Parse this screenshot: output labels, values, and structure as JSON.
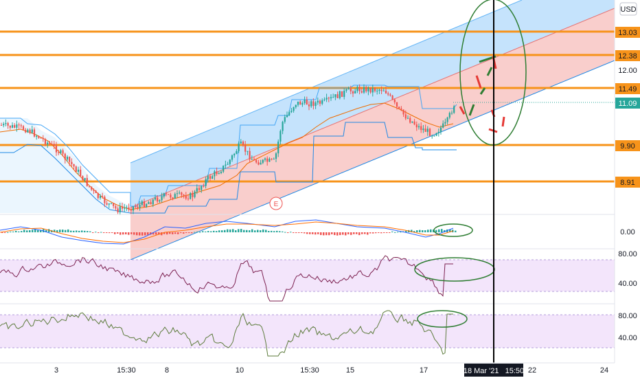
{
  "currency": "USD",
  "price_tags": [
    {
      "label": "13.03",
      "color": "#f7931a",
      "text_color": "#131722"
    },
    {
      "label": "12.38",
      "color": "#f7931a",
      "text_color": "#131722"
    },
    {
      "label": "11.49",
      "color": "#f7931a",
      "text_color": "#131722"
    },
    {
      "label": "11.09",
      "color": "#26a69a",
      "text_color": "#ffffff"
    },
    {
      "label": "9.90",
      "color": "#f7931a",
      "text_color": "#131722"
    },
    {
      "label": "8.91",
      "color": "#f7931a",
      "text_color": "#131722"
    }
  ],
  "price_scale_labels": [
    "12.00"
  ],
  "macd_scale_labels": [
    "0.00"
  ],
  "rsi_scale_labels": [
    "80.00",
    "40.00"
  ],
  "stoch_scale_labels": [
    "80.00",
    "40.00"
  ],
  "time_labels": [
    "3",
    "15:30",
    "8",
    "10",
    "15:30",
    "15",
    "17",
    "22",
    "24"
  ],
  "crosshair_time_label": "18 Mar '21   15:50",
  "earnings_marker": "E",
  "colors": {
    "accent_orange": "#f7931a",
    "channel_upper": "#bbdefb",
    "channel_lower": "#f8c5c3",
    "up_candle": "#26a69a",
    "down_candle": "#ef5350",
    "annotation_green": "#2e7d32",
    "rsi_line": "#7b1f4f",
    "stoch_line": "#5b7a3a",
    "band_fill": "#f3e5fb"
  }
}
